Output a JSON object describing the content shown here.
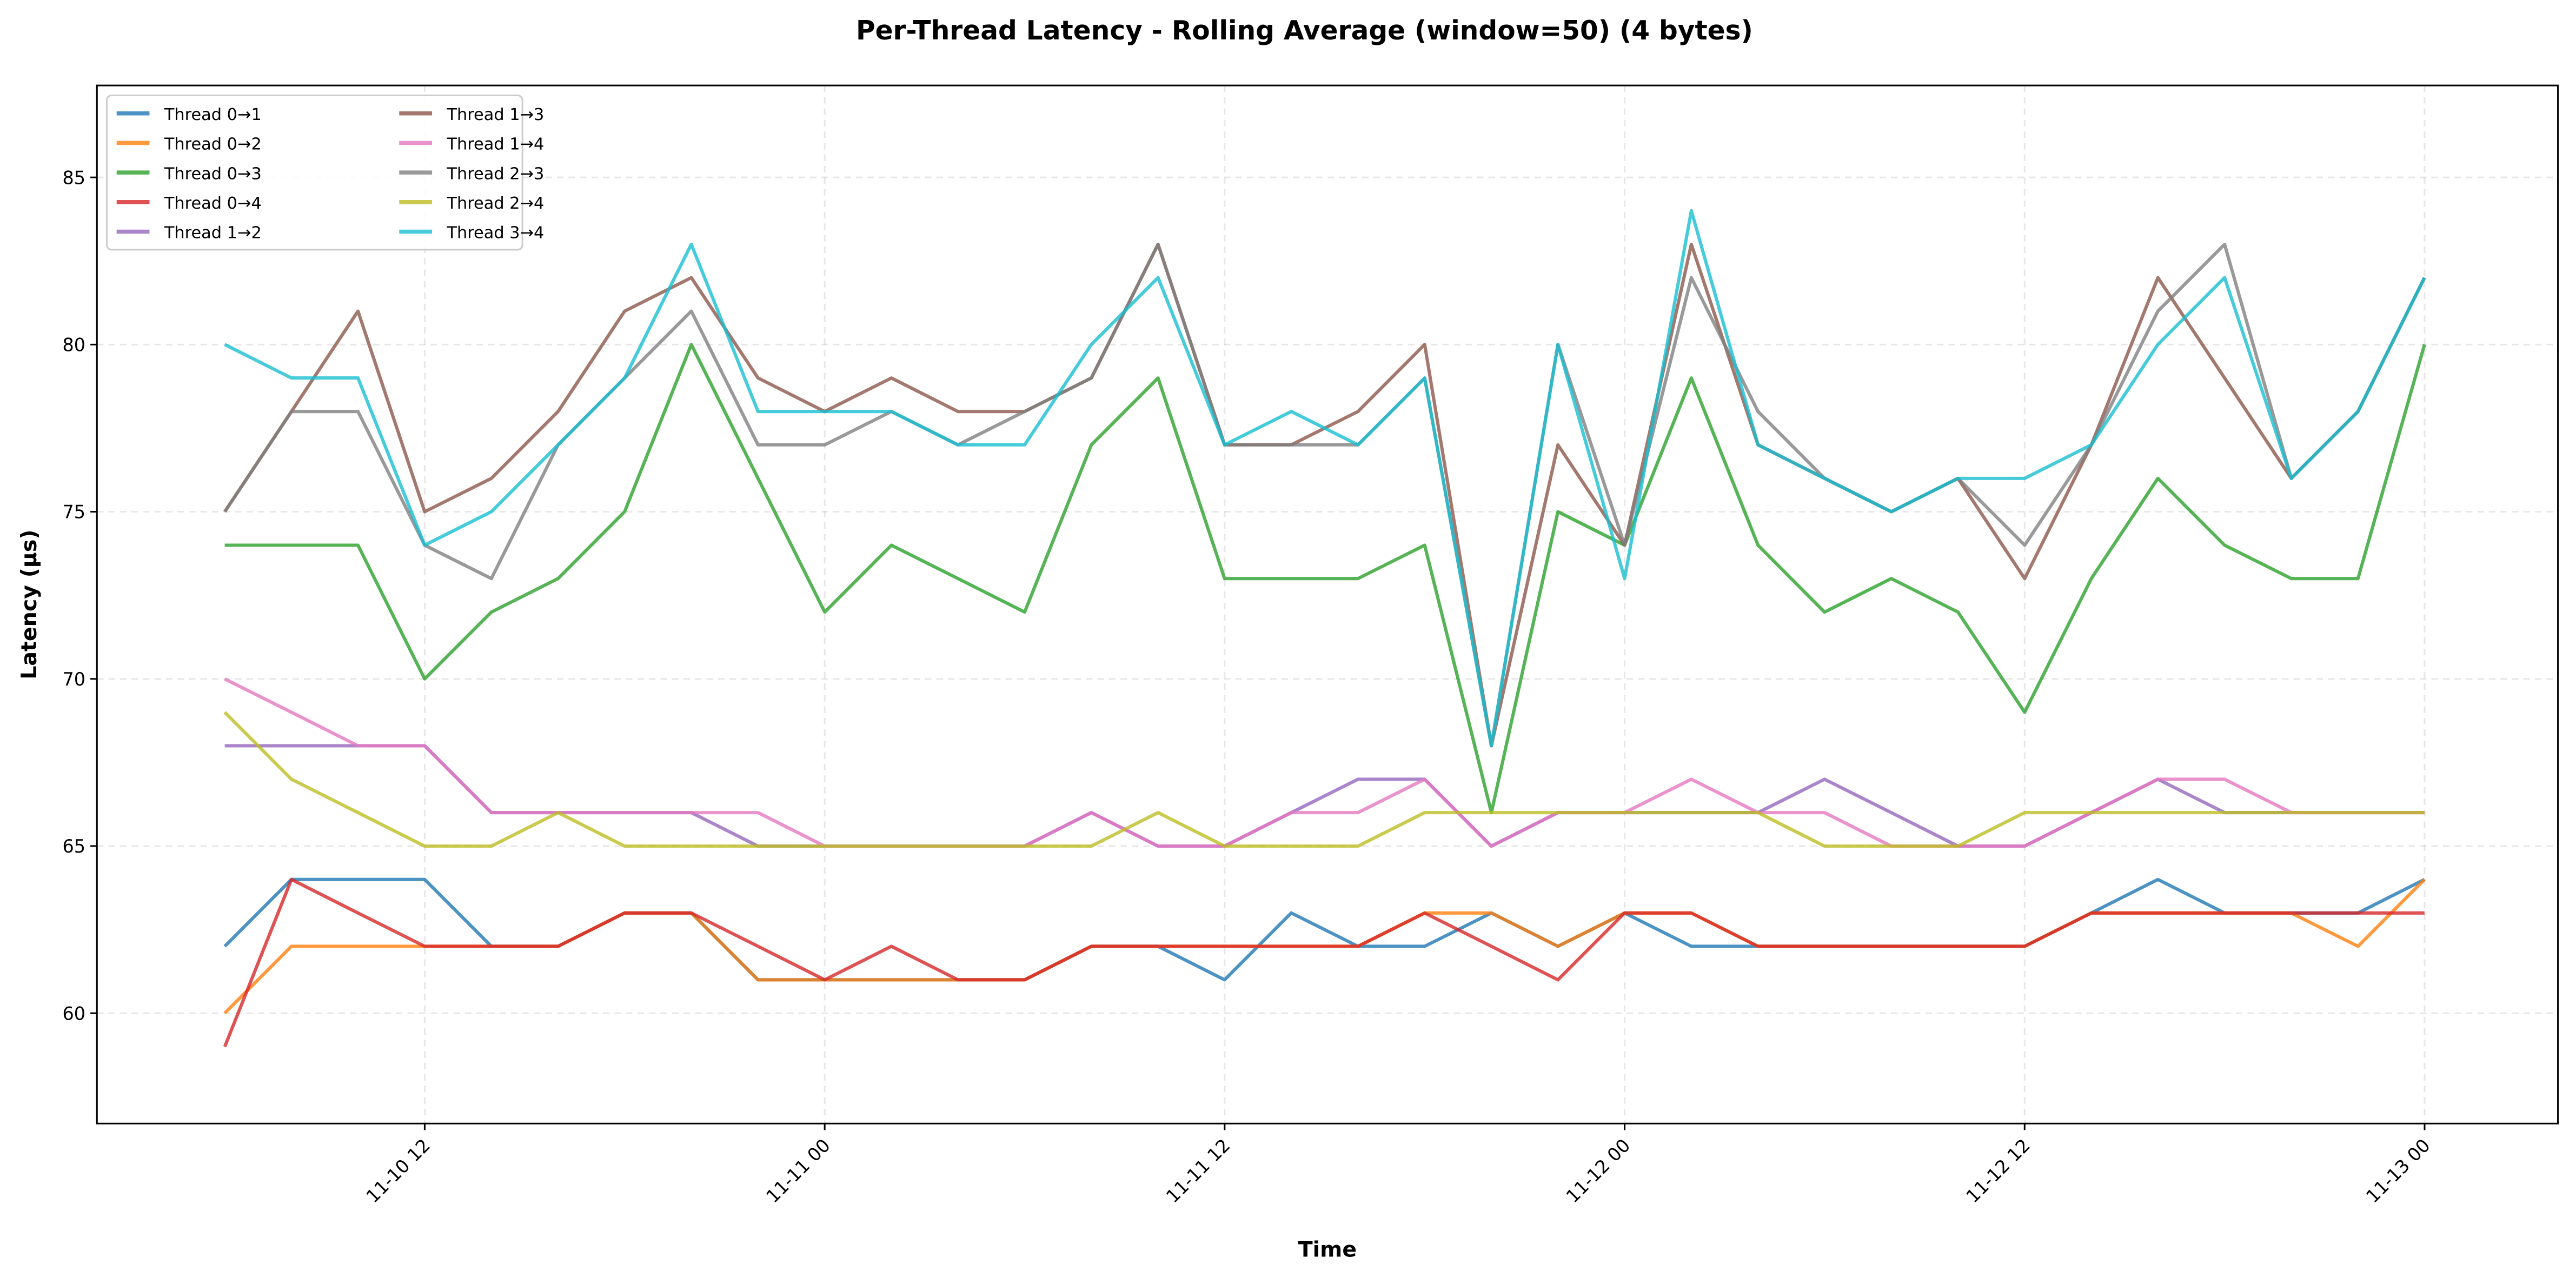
{
  "chart_data": {
    "type": "line",
    "title": "Per-Thread Latency - Rolling Average (window=50) (4 bytes)",
    "xlabel": "Time",
    "ylabel": "Latency (µs)",
    "xlim": [
      "11-10 02:10",
      "11-13 04:00"
    ],
    "ylim": [
      56.7,
      87.75
    ],
    "xticks": [
      "11-10 12",
      "11-11 00",
      "11-11 12",
      "11-12 00",
      "11-12 12",
      "11-13 00"
    ],
    "yticks": [
      60,
      65,
      70,
      75,
      80,
      85
    ],
    "grid": true,
    "legend_placement": "top-left",
    "x": [
      "11-10 06:00",
      "11-10 08:00",
      "11-10 10:00",
      "11-10 12:00",
      "11-10 14:00",
      "11-10 16:00",
      "11-10 18:00",
      "11-10 20:00",
      "11-10 22:00",
      "11-11 00:00",
      "11-11 02:00",
      "11-11 04:00",
      "11-11 06:00",
      "11-11 08:00",
      "11-11 10:00",
      "11-11 12:00",
      "11-11 14:00",
      "11-11 16:00",
      "11-11 18:00",
      "11-11 20:00",
      "11-11 22:00",
      "11-12 00:00",
      "11-12 02:00",
      "11-12 04:00",
      "11-12 06:00",
      "11-12 08:00",
      "11-12 10:00",
      "11-12 12:00",
      "11-12 14:00",
      "11-12 16:00",
      "11-12 18:00",
      "11-12 20:00",
      "11-12 22:00",
      "11-13 00:00"
    ],
    "series": [
      {
        "name": "Thread 0→1",
        "color": "#1f77b4",
        "values": [
          62,
          64,
          64,
          64,
          62,
          62,
          63,
          63,
          61,
          61,
          61,
          61,
          61,
          62,
          62,
          61,
          63,
          62,
          62,
          63,
          62,
          63,
          62,
          62,
          62,
          62,
          62,
          62,
          63,
          64,
          63,
          63,
          63,
          64
        ]
      },
      {
        "name": "Thread 0→2",
        "color": "#ff7f0e",
        "values": [
          60,
          62,
          62,
          62,
          62,
          62,
          63,
          63,
          61,
          61,
          61,
          61,
          61,
          62,
          62,
          62,
          62,
          62,
          63,
          63,
          62,
          63,
          63,
          62,
          62,
          62,
          62,
          62,
          63,
          63,
          63,
          63,
          62,
          64
        ]
      },
      {
        "name": "Thread 0→3",
        "color": "#2ca02c",
        "values": [
          74,
          74,
          74,
          70,
          72,
          73,
          75,
          80,
          76,
          72,
          74,
          73,
          72,
          77,
          79,
          73,
          73,
          73,
          74,
          66,
          75,
          74,
          79,
          74,
          72,
          73,
          72,
          69,
          73,
          76,
          74,
          73,
          73,
          80
        ]
      },
      {
        "name": "Thread 0→4",
        "color": "#d62728",
        "values": [
          59,
          64,
          63,
          62,
          62,
          62,
          63,
          63,
          62,
          61,
          62,
          61,
          61,
          62,
          62,
          62,
          62,
          62,
          63,
          62,
          61,
          63,
          63,
          62,
          62,
          62,
          62,
          62,
          63,
          63,
          63,
          63,
          63,
          63
        ]
      },
      {
        "name": "Thread 1→2",
        "color": "#9467bd",
        "values": [
          68,
          68,
          68,
          68,
          66,
          66,
          66,
          66,
          65,
          65,
          65,
          65,
          65,
          66,
          65,
          65,
          66,
          67,
          67,
          65,
          66,
          66,
          66,
          66,
          67,
          66,
          65,
          65,
          66,
          67,
          66,
          66,
          66,
          66
        ]
      },
      {
        "name": "Thread 1→3",
        "color": "#8c564b",
        "values": [
          75,
          78,
          81,
          75,
          76,
          78,
          81,
          82,
          79,
          78,
          79,
          78,
          78,
          79,
          83,
          77,
          77,
          78,
          80,
          68,
          77,
          74,
          83,
          77,
          76,
          75,
          76,
          73,
          77,
          82,
          79,
          76,
          78,
          82
        ]
      },
      {
        "name": "Thread 1→4",
        "color": "#e377c2",
        "values": [
          70,
          69,
          68,
          68,
          66,
          66,
          66,
          66,
          66,
          65,
          65,
          65,
          65,
          66,
          65,
          65,
          66,
          66,
          67,
          65,
          66,
          66,
          67,
          66,
          66,
          65,
          65,
          65,
          66,
          67,
          67,
          66,
          66,
          66
        ]
      },
      {
        "name": "Thread 2→3",
        "color": "#7f7f7f",
        "values": [
          75,
          78,
          78,
          74,
          73,
          77,
          79,
          81,
          77,
          77,
          78,
          77,
          78,
          79,
          83,
          77,
          77,
          77,
          79,
          68,
          80,
          74,
          82,
          78,
          76,
          75,
          76,
          74,
          77,
          81,
          83,
          76,
          78,
          82
        ]
      },
      {
        "name": "Thread 2→4",
        "color": "#bcbd22",
        "values": [
          69,
          67,
          66,
          65,
          65,
          66,
          65,
          65,
          65,
          65,
          65,
          65,
          65,
          65,
          66,
          65,
          65,
          65,
          66,
          66,
          66,
          66,
          66,
          66,
          65,
          65,
          65,
          66,
          66,
          66,
          66,
          66,
          66,
          66
        ]
      },
      {
        "name": "Thread 3→4",
        "color": "#17becf",
        "values": [
          80,
          79,
          79,
          74,
          75,
          77,
          79,
          83,
          78,
          78,
          78,
          77,
          77,
          80,
          82,
          77,
          78,
          77,
          79,
          68,
          80,
          73,
          84,
          77,
          76,
          75,
          76,
          76,
          77,
          80,
          82,
          76,
          78,
          82
        ]
      }
    ]
  }
}
